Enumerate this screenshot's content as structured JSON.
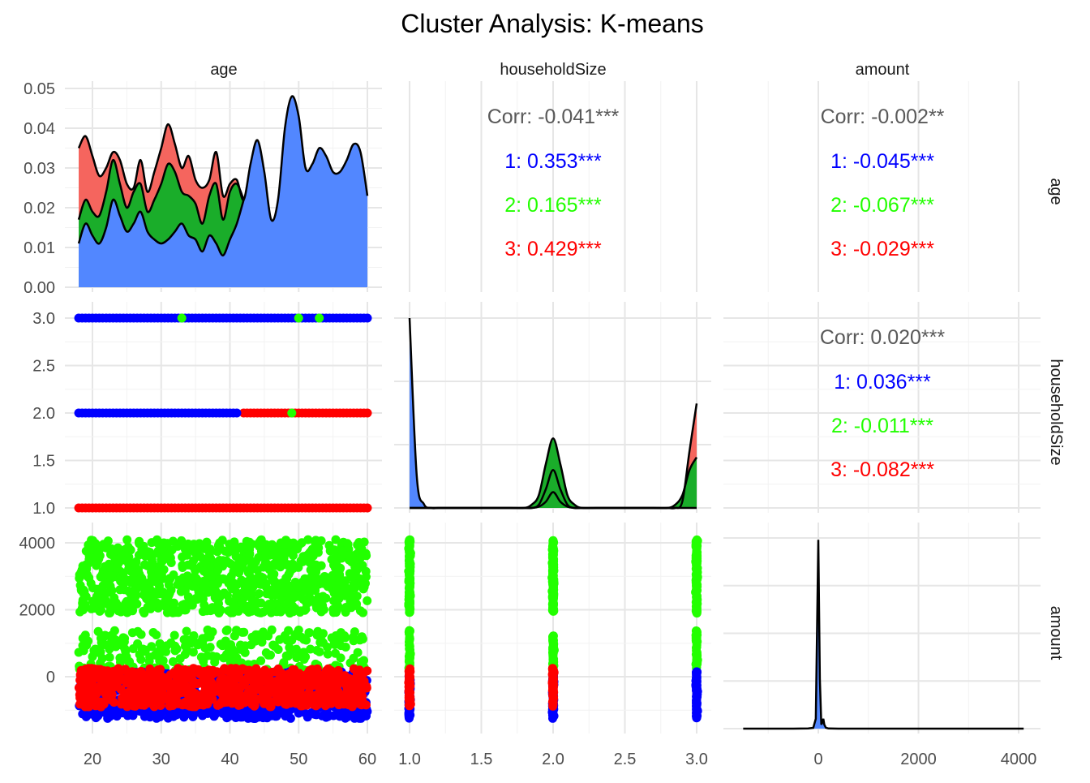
{
  "chart_data": {
    "type": "scatter-matrix",
    "title": "Cluster Analysis: K-means",
    "variables": [
      "age",
      "householdSize",
      "amount"
    ],
    "cluster_colors": {
      "1": "#0000ff",
      "2": "#22ff00",
      "3": "#ff0000"
    },
    "density_fill_colors": {
      "1": "#5287ff",
      "2": "#1aad2a",
      "3": "#f5655e"
    },
    "grid": true,
    "axes": {
      "age": {
        "range": [
          18,
          60
        ],
        "ticks": [
          "20",
          "30",
          "40",
          "50",
          "60"
        ],
        "tick_values": [
          20,
          30,
          40,
          50,
          60
        ]
      },
      "householdSize": {
        "range": [
          1.0,
          3.0
        ],
        "ticks": [
          "1.0",
          "1.5",
          "2.0",
          "2.5",
          "3.0"
        ],
        "tick_values": [
          1.0,
          1.5,
          2.0,
          2.5,
          3.0
        ]
      },
      "amount": {
        "range": [
          -1500,
          4150
        ],
        "ticks": [
          "0",
          "2000",
          "4000"
        ],
        "tick_values": [
          0,
          2000,
          4000
        ]
      },
      "density_y": {
        "range": [
          0,
          0.05
        ],
        "ticks": [
          "0.00",
          "0.01",
          "0.02",
          "0.03",
          "0.04",
          "0.05"
        ],
        "tick_values": [
          0,
          0.01,
          0.02,
          0.03,
          0.04,
          0.05
        ]
      }
    },
    "correlations": {
      "age_householdSize": {
        "overall": "Corr: -0.041***",
        "cluster_1": "1: 0.353***",
        "cluster_2": "2: 0.165***",
        "cluster_3": "3: 0.429***"
      },
      "age_amount": {
        "overall": "Corr: -0.002**",
        "cluster_1": "1: -0.045***",
        "cluster_2": "2: -0.067***",
        "cluster_3": "3: -0.029***"
      },
      "householdSize_amount": {
        "overall": "Corr: 0.020***",
        "cluster_1": "1: 0.036***",
        "cluster_2": "2: -0.011***",
        "cluster_3": "3: -0.082***"
      }
    },
    "age_density": {
      "x": [
        18,
        19,
        20,
        21,
        22,
        23,
        24,
        25,
        26,
        27,
        28,
        29,
        30,
        31,
        32,
        33,
        34,
        35,
        36,
        37,
        38,
        39,
        40,
        41,
        42,
        43,
        44,
        45,
        46,
        47,
        48,
        49,
        50,
        51,
        52,
        53,
        54,
        55,
        56,
        57,
        58,
        59,
        60
      ],
      "series": [
        {
          "cluster": "1",
          "values": [
            0.011,
            0.016,
            0.013,
            0.011,
            0.015,
            0.022,
            0.018,
            0.014,
            0.016,
            0.019,
            0.014,
            0.012,
            0.011,
            0.012,
            0.014,
            0.016,
            0.013,
            0.012,
            0.009,
            0.013,
            0.011,
            0.008,
            0.012,
            0.016,
            0.022,
            0.031,
            0.037,
            0.029,
            0.017,
            0.022,
            0.04,
            0.048,
            0.043,
            0.03,
            0.031,
            0.035,
            0.033,
            0.029,
            0.029,
            0.032,
            0.036,
            0.034,
            0.023
          ]
        },
        {
          "cluster": "2",
          "values": [
            0.006,
            0.006,
            0.006,
            0.007,
            0.009,
            0.01,
            0.008,
            0.006,
            0.008,
            0.007,
            0.005,
            0.01,
            0.015,
            0.019,
            0.015,
            0.008,
            0.01,
            0.009,
            0.007,
            0.01,
            0.015,
            0.009,
            0.012,
            0.01,
            0,
            0,
            0,
            0,
            0,
            0,
            0,
            0,
            0,
            0,
            0,
            0,
            0,
            0,
            0,
            0,
            0,
            0,
            0
          ]
        },
        {
          "cluster": "3",
          "values": [
            0.018,
            0.016,
            0.014,
            0.01,
            0.006,
            0.002,
            0.006,
            0.006,
            0.001,
            0.006,
            0.005,
            0.007,
            0.009,
            0.01,
            0.007,
            0.006,
            0.01,
            0.006,
            0.009,
            0.004,
            0.008,
            0.006,
            0.002,
            0.001,
            0,
            0,
            0,
            0,
            0,
            0,
            0,
            0,
            0,
            0,
            0,
            0,
            0,
            0,
            0,
            0,
            0,
            0,
            0
          ]
        }
      ]
    },
    "householdSize_density": {
      "x": [
        1.0,
        1.05,
        1.1,
        1.15,
        1.2,
        1.3,
        1.4,
        1.5,
        1.6,
        1.7,
        1.8,
        1.85,
        1.9,
        1.95,
        2.0,
        2.05,
        2.1,
        2.15,
        2.2,
        2.3,
        2.4,
        2.5,
        2.6,
        2.7,
        2.8,
        2.85,
        2.9,
        2.95,
        3.0
      ],
      "series": [
        {
          "cluster": "1",
          "values": [
            3.0,
            0.5,
            0.06,
            0.0,
            0.0,
            0.0,
            0.0,
            0.0,
            0.0,
            0.0,
            0.0,
            0.0,
            0.05,
            0.3,
            0.6,
            0.3,
            0.05,
            0.0,
            0.0,
            0.0,
            0.0,
            0.0,
            0.0,
            0.0,
            0.0,
            0.0,
            0.0,
            0.0,
            0.0
          ]
        },
        {
          "cluster": "2",
          "values": [
            0.0,
            0.0,
            0.0,
            0.0,
            0.0,
            0.0,
            0.0,
            0.0,
            0.0,
            0.0,
            0.0,
            0.05,
            0.2,
            0.7,
            1.1,
            0.7,
            0.2,
            0.05,
            0.0,
            0.0,
            0.0,
            0.0,
            0.0,
            0.0,
            0.0,
            0.05,
            0.2,
            0.6,
            0.8
          ]
        },
        {
          "cluster": "3",
          "values": [
            0.0,
            0.0,
            0.0,
            0.0,
            0.0,
            0.0,
            0.0,
            0.0,
            0.0,
            0.0,
            0.0,
            0.0,
            0.02,
            0.1,
            0.25,
            0.1,
            0.02,
            0.0,
            0.0,
            0.0,
            0.0,
            0.0,
            0.0,
            0.0,
            0.0,
            0.0,
            0.1,
            0.9,
            1.65
          ]
        }
      ]
    },
    "amount_density": {
      "x": [
        -1500,
        -1000,
        -500,
        -200,
        -100,
        -50,
        0,
        30,
        60,
        80,
        100,
        120,
        150,
        200,
        400,
        1000,
        2000,
        3000,
        4100
      ],
      "values": [
        0.0,
        0.0,
        0.0,
        0.001,
        0.004,
        0.05,
        0.95,
        0.25,
        0.02,
        0.03,
        0.05,
        0.02,
        0.005,
        0.001,
        0.0,
        0.0,
        0.0,
        0.0,
        0.0
      ],
      "fill_cluster": "1"
    },
    "scatter": {
      "age_householdSize": {
        "cluster_1_points": [
          {
            "age_range": [
              18,
              60
            ],
            "householdSize": 3.0
          },
          {
            "age_range": [
              18,
              41
            ],
            "householdSize": 2.0
          }
        ],
        "cluster_2_points": [
          {
            "age": 33,
            "householdSize": 3.0
          },
          {
            "age": 50,
            "householdSize": 3.0
          },
          {
            "age": 53,
            "householdSize": 3.0
          },
          {
            "age": 49,
            "householdSize": 2.0
          }
        ],
        "cluster_3_points": [
          {
            "age_range": [
              42,
              60
            ],
            "householdSize": 2.0
          },
          {
            "age_range": [
              18,
              60
            ],
            "householdSize": 1.0
          }
        ]
      },
      "amount_bands": {
        "cluster_2_high": [
          1900,
          4100
        ],
        "cluster_2_low": [
          150,
          1400
        ],
        "cluster_1": [
          -1250,
          150
        ],
        "cluster_3": [
          -900,
          250
        ]
      }
    }
  }
}
